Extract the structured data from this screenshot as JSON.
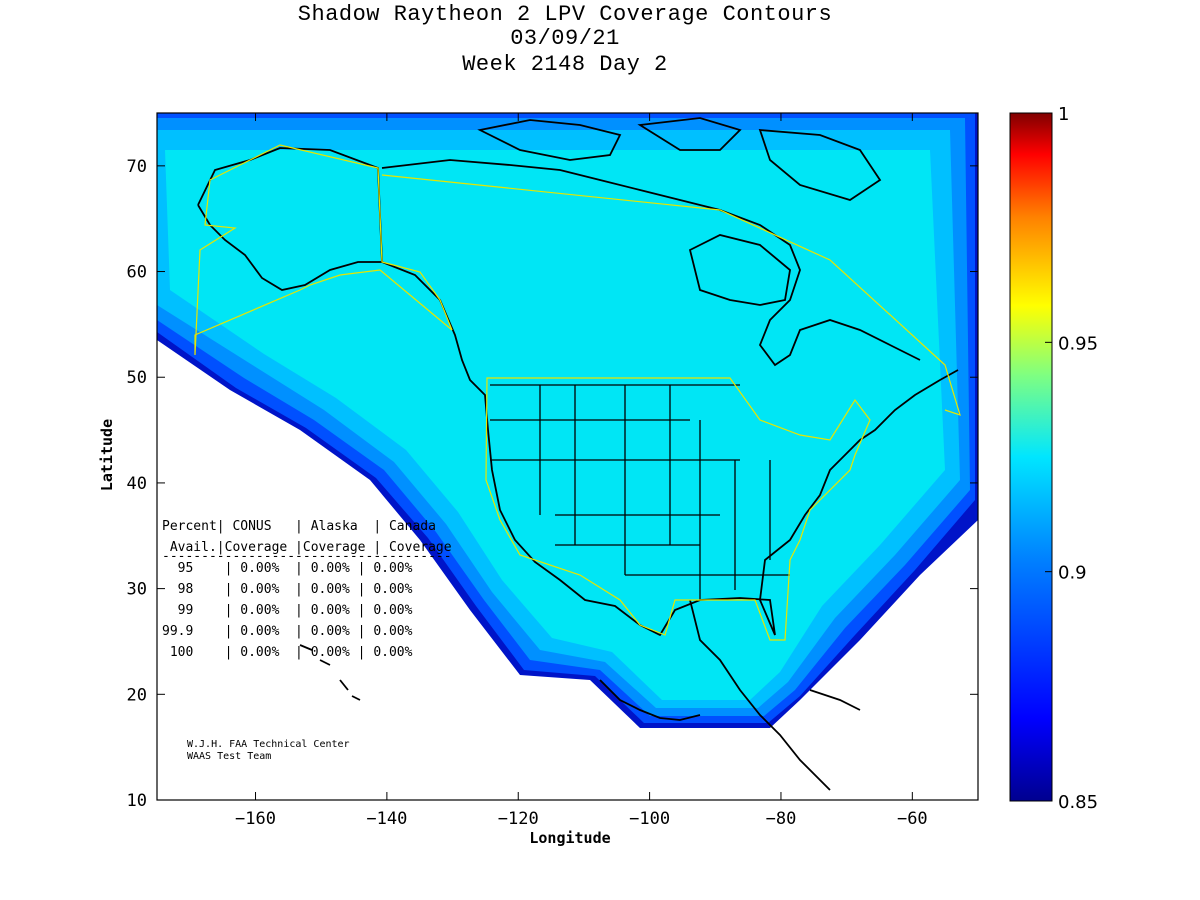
{
  "title": {
    "line1": "Shadow Raytheon 2 LPV Coverage Contours",
    "line2": "03/09/21",
    "line3": "Week 2148 Day 2"
  },
  "axes": {
    "xlabel": "Longitude",
    "ylabel": "Latitude",
    "xlim": [
      -175,
      -50
    ],
    "ylim": [
      10,
      75
    ],
    "xticks": [
      -160,
      -140,
      -120,
      -100,
      -80,
      -60
    ],
    "yticks": [
      10,
      20,
      30,
      40,
      50,
      60,
      70
    ]
  },
  "colorbar": {
    "range": [
      0.85,
      1
    ],
    "ticks": [
      "1",
      "0.95",
      "0.9",
      "0.85"
    ],
    "tick_values": [
      1,
      0.95,
      0.9,
      0.85
    ],
    "colors": [
      "#00008f",
      "#0000ff",
      "#0080ff",
      "#00ffff",
      "#80ff80",
      "#ffff00",
      "#ff8000",
      "#ff0000",
      "#800000"
    ]
  },
  "stats_table": {
    "header1": "Percent| CONUS   | Alaska  | Canada",
    "header2": " Avail.|Coverage |Coverage | Coverage",
    "separator": "-------------------------------------",
    "rows": [
      "  95    | 0.00%  | 0.00% | 0.00%",
      "  98    | 0.00%  | 0.00% | 0.00%",
      "  99    | 0.00%  | 0.00% | 0.00%",
      "99.9    | 0.00%  | 0.00% | 0.00%",
      " 100    | 0.00%  | 0.00% | 0.00%"
    ]
  },
  "credit": {
    "line1": "W.J.H. FAA Technical Center",
    "line2": "WAAS Test Team"
  },
  "chart_data": {
    "type": "heatmap",
    "title": "Shadow Raytheon 2 LPV Coverage Contours",
    "xlabel": "Longitude",
    "ylabel": "Latitude",
    "xlim": [
      -175,
      -50
    ],
    "ylim": [
      10,
      75
    ],
    "colorbar_range": [
      0.85,
      1
    ],
    "dominant_value": 0.9
  }
}
